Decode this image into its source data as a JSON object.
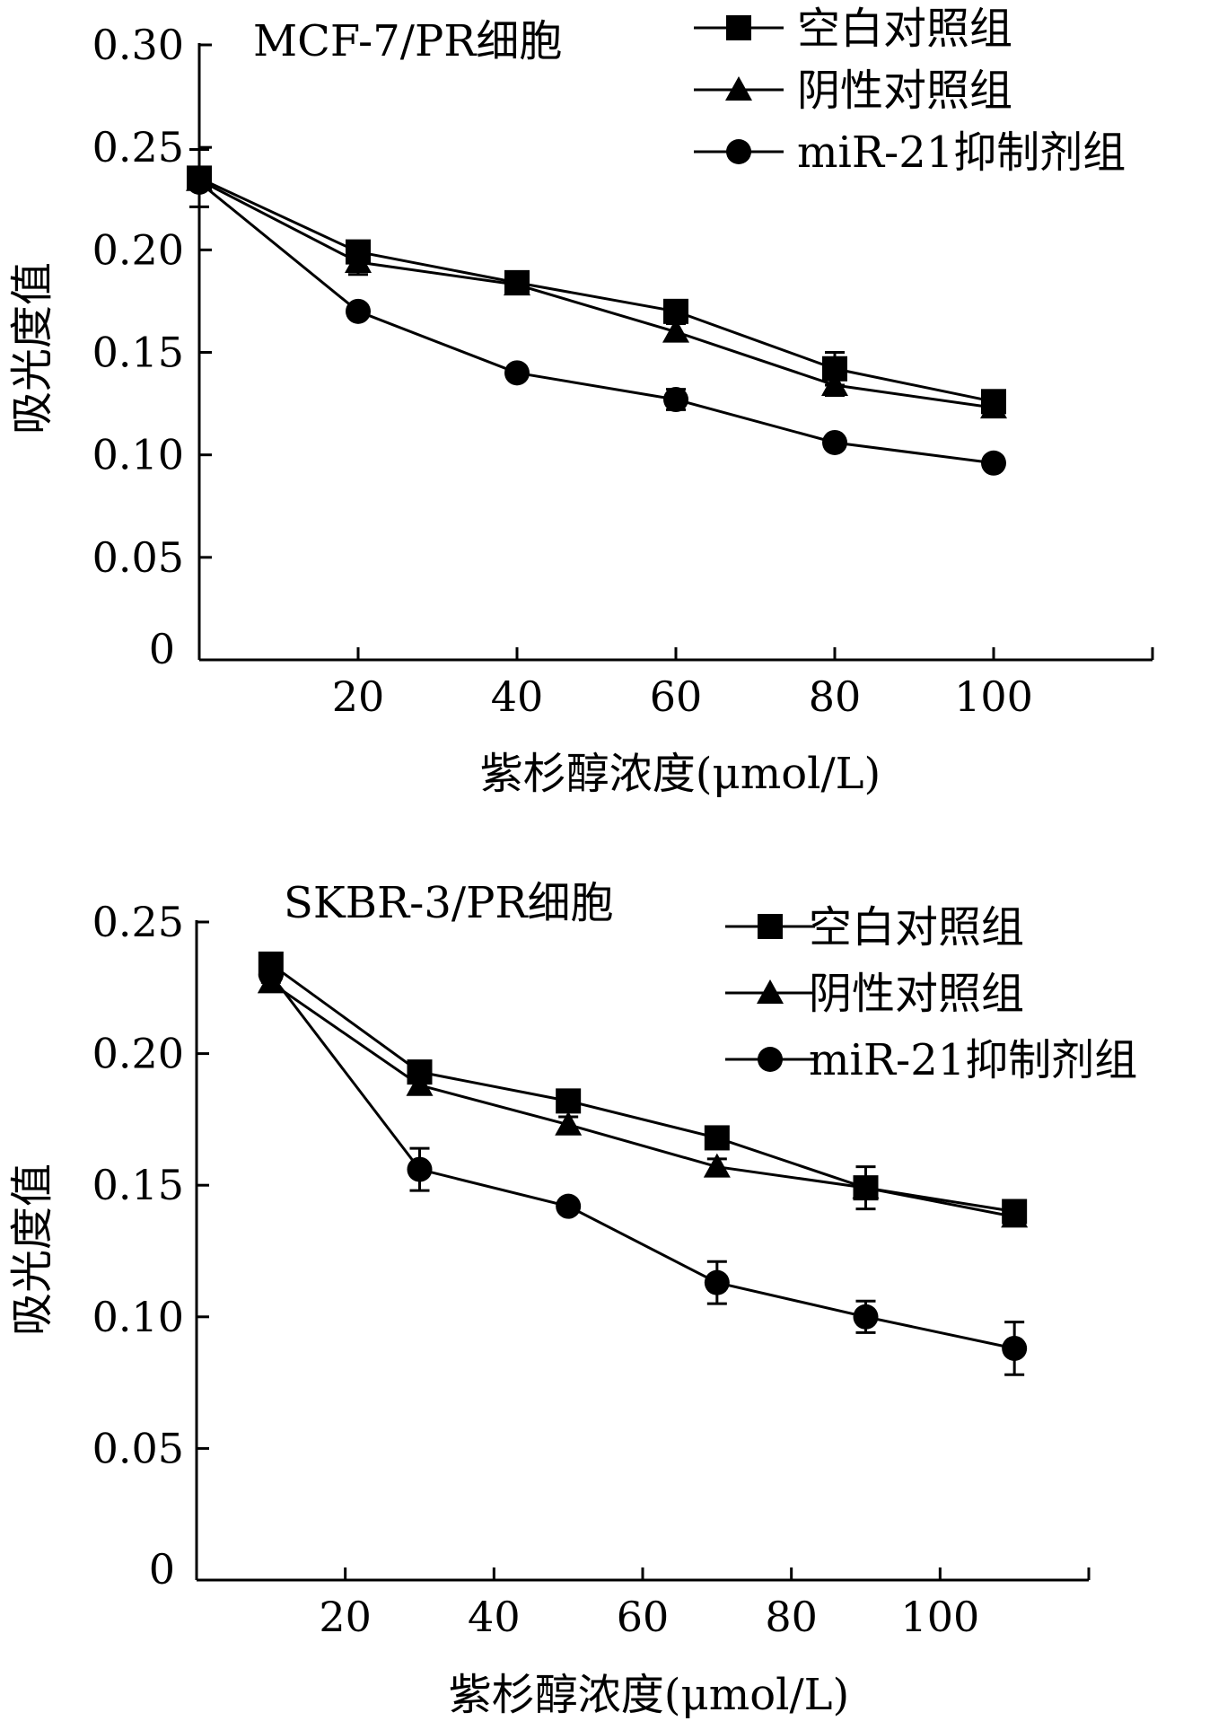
{
  "chart_data": [
    {
      "type": "line",
      "title": "MCF-7/PR细胞",
      "xlabel": "紫杉醇浓度(μmol/L)",
      "ylabel": "吸光度值",
      "x": [
        0,
        20,
        40,
        60,
        80,
        100
      ],
      "xticks": [
        "20",
        "40",
        "60",
        "80",
        "100"
      ],
      "xlim": [
        0,
        120
      ],
      "yticks": [
        "0",
        "0.05",
        "0.10",
        "0.15",
        "0.20",
        "0.25",
        "0.30"
      ],
      "ylim": [
        0,
        0.3
      ],
      "legend_position": "top-right",
      "series": [
        {
          "name": "空白对照组",
          "marker": "square",
          "values": [
            0.235,
            0.199,
            0.184,
            0.17,
            0.142,
            0.126
          ],
          "errors": [
            0.014,
            0.005,
            0.004,
            0.004,
            0.008,
            0.004
          ]
        },
        {
          "name": "阴性对照组",
          "marker": "triangle",
          "values": [
            0.234,
            0.194,
            0.183,
            0.16,
            0.134,
            0.123
          ],
          "errors": [
            0.004,
            0.006,
            0.004,
            0.004,
            0.005,
            0.004
          ]
        },
        {
          "name": "miR-21抑制剂组",
          "marker": "circle",
          "values": [
            0.233,
            0.17,
            0.14,
            0.127,
            0.106,
            0.096
          ],
          "errors": [
            0.003,
            0.002,
            0.002,
            0.005,
            0.002,
            0.002
          ]
        }
      ]
    },
    {
      "type": "line",
      "title": "SKBR-3/PR细胞",
      "xlabel": "紫杉醇浓度(μmol/L)",
      "ylabel": "吸光度值",
      "x": [
        10,
        30,
        50,
        70,
        90,
        110
      ],
      "xticks": [
        "20",
        "40",
        "60",
        "80",
        "100"
      ],
      "xlim": [
        0,
        120
      ],
      "yticks": [
        "0",
        "0.05",
        "0.10",
        "0.15",
        "0.20",
        "0.25"
      ],
      "ylim": [
        0,
        0.25
      ],
      "legend_position": "top-right",
      "series": [
        {
          "name": "空白对照组",
          "marker": "square",
          "values": [
            0.234,
            0.193,
            0.182,
            0.168,
            0.149,
            0.14
          ],
          "errors": [
            0.004,
            0.003,
            0.003,
            0.003,
            0.008,
            0.004
          ]
        },
        {
          "name": "阴性对照组",
          "marker": "triangle",
          "values": [
            0.227,
            0.188,
            0.173,
            0.157,
            0.149,
            0.138
          ],
          "errors": [
            0.003,
            0.003,
            0.003,
            0.003,
            0.003,
            0.003
          ]
        },
        {
          "name": "miR-21抑制剂组",
          "marker": "circle",
          "values": [
            0.23,
            0.156,
            0.142,
            0.113,
            0.1,
            0.088
          ],
          "errors": [
            0.003,
            0.008,
            0.002,
            0.008,
            0.006,
            0.01
          ]
        }
      ]
    }
  ]
}
